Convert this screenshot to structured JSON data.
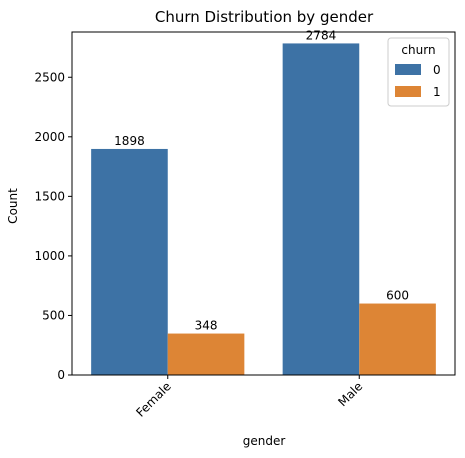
{
  "chart_data": {
    "type": "bar",
    "title": "Churn Distribution by gender",
    "xlabel": "gender",
    "ylabel": "Count",
    "categories": [
      "Female",
      "Male"
    ],
    "series": [
      {
        "name": "0",
        "values": [
          1898,
          2784
        ],
        "color": "#3d72a5"
      },
      {
        "name": "1",
        "values": [
          348,
          600
        ],
        "color": "#dd8535"
      }
    ],
    "legend": {
      "title": "churn",
      "placement": "top-right"
    },
    "ylim": [
      0,
      2880
    ],
    "yticks": [
      0,
      500,
      1000,
      1500,
      2000,
      2500
    ],
    "grid": false,
    "show_data_labels": true
  }
}
